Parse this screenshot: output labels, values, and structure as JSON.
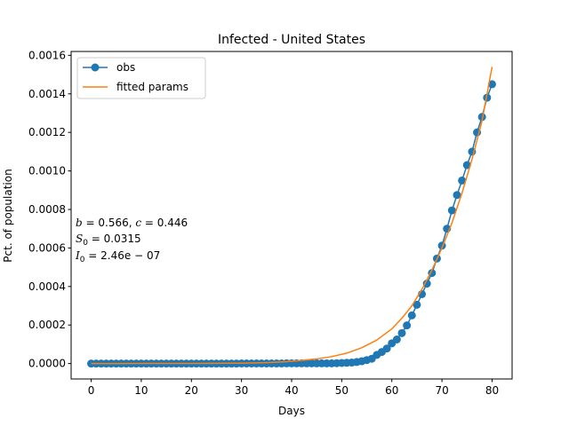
{
  "chart_data": {
    "type": "line",
    "title": "Infected - United States",
    "xlabel": "Days",
    "ylabel": "Pct. of population",
    "xlim": [
      -4,
      84
    ],
    "ylim": [
      -8e-05,
      0.00162
    ],
    "x_ticks": [
      0,
      10,
      20,
      30,
      40,
      50,
      60,
      70,
      80
    ],
    "y_ticks": [
      0.0,
      0.0002,
      0.0004,
      0.0006,
      0.0008,
      0.001,
      0.0012,
      0.0014,
      0.0016
    ],
    "y_tick_labels": [
      "0.0000",
      "0.0002",
      "0.0004",
      "0.0006",
      "0.0008",
      "0.0010",
      "0.0012",
      "0.0014",
      "0.0016"
    ],
    "grid": false,
    "legend": {
      "position": "top-left",
      "entries": [
        "obs",
        "fitted params"
      ]
    },
    "annotation": {
      "line1": {
        "b": "b",
        "b_eq": " = 0.566, ",
        "c": "c",
        "c_eq": " = 0.446"
      },
      "line2": {
        "s": "S",
        "s_sub": "0",
        "s_eq": " = 0.0315"
      },
      "line3": {
        "i": "I",
        "i_sub": "0",
        "i_eq": " = 2.46e − 07"
      }
    },
    "series": [
      {
        "name": "obs",
        "style": "line+markers",
        "color": "#1f77b4",
        "x": [
          0,
          1,
          2,
          3,
          4,
          5,
          6,
          7,
          8,
          9,
          10,
          11,
          12,
          13,
          14,
          15,
          16,
          17,
          18,
          19,
          20,
          21,
          22,
          23,
          24,
          25,
          26,
          27,
          28,
          29,
          30,
          31,
          32,
          33,
          34,
          35,
          36,
          37,
          38,
          39,
          40,
          41,
          42,
          43,
          44,
          45,
          46,
          47,
          48,
          49,
          50,
          51,
          52,
          53,
          54,
          55,
          56,
          57,
          58,
          59,
          60,
          61,
          62,
          63,
          64,
          65,
          66,
          67,
          68,
          69,
          70,
          71,
          72,
          73,
          74,
          75,
          76,
          77,
          78,
          79,
          80
        ],
        "y": [
          0,
          0,
          0,
          0,
          0,
          0,
          0,
          0,
          0,
          0,
          0,
          0,
          0,
          0,
          0,
          0,
          0,
          0,
          0,
          0,
          0,
          0,
          0,
          0,
          0,
          0,
          0,
          0,
          0,
          0,
          5e-07,
          5e-07,
          5e-07,
          5e-07,
          5e-07,
          5e-07,
          5e-07,
          5e-07,
          5e-07,
          1e-06,
          1e-06,
          1e-06,
          1e-06,
          1e-06,
          1e-06,
          1e-06,
          1e-06,
          1e-06,
          1e-06,
          2e-06,
          3e-06,
          4e-06,
          5e-06,
          8e-06,
          1.2e-05,
          1.8e-05,
          2.5e-05,
          4.5e-05,
          6e-05,
          7.8e-05,
          0.000105,
          0.000125,
          0.000158,
          0.000198,
          0.00025,
          0.000305,
          0.00036,
          0.000415,
          0.00047,
          0.000545,
          0.000612,
          0.0007,
          0.000795,
          0.000875,
          0.00095,
          0.00103,
          0.0011,
          0.0012,
          0.00128,
          0.00138,
          0.00145
        ]
      },
      {
        "name": "fitted params",
        "style": "line",
        "color": "#ff7f0e",
        "x": [
          0,
          5,
          10,
          15,
          20,
          25,
          30,
          33,
          36,
          39,
          42,
          45,
          48,
          51,
          54,
          57,
          60,
          62,
          64,
          66,
          68,
          70,
          72,
          74,
          76,
          78,
          80
        ],
        "y": [
          2e-07,
          3e-07,
          4e-07,
          6e-07,
          9e-07,
          1.4e-06,
          2e-06,
          3.5e-06,
          6e-06,
          1e-05,
          1.6e-05,
          2.4e-05,
          3.6e-05,
          5.4e-05,
          8.2e-05,
          0.000122,
          0.00018,
          0.000235,
          0.0003,
          0.000385,
          0.000485,
          0.0006,
          0.00073,
          0.000885,
          0.00106,
          0.00126,
          0.00154
        ]
      }
    ]
  }
}
